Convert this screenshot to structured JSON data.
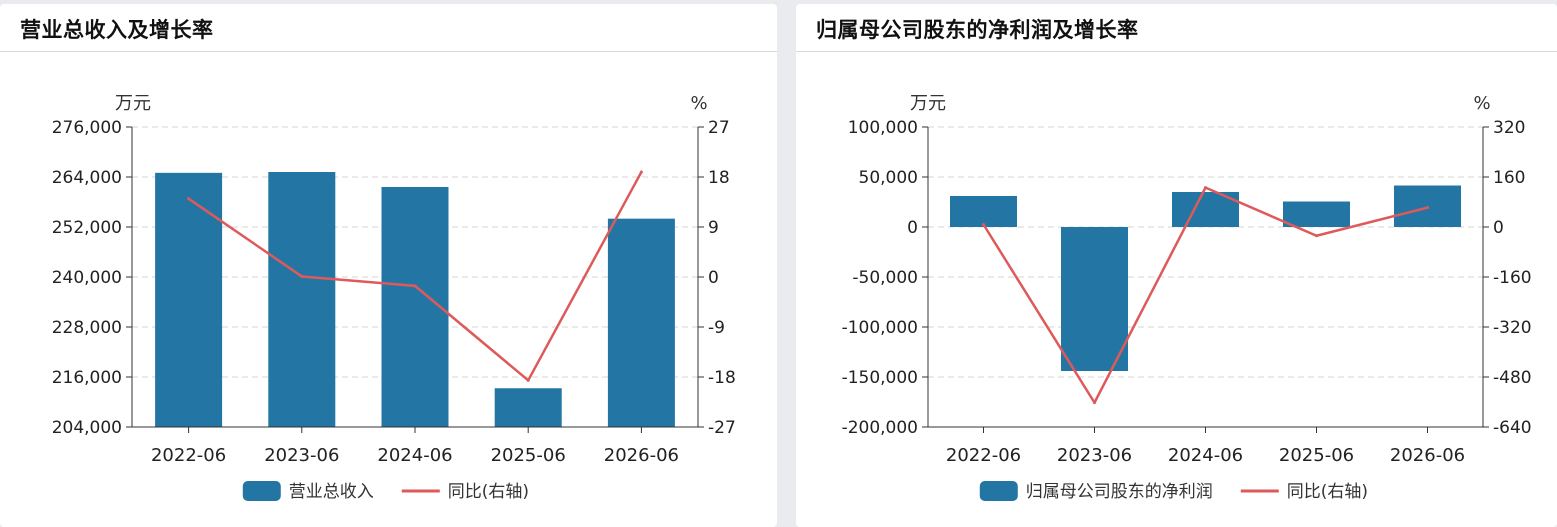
{
  "chart_data": [
    {
      "type": "bar",
      "title": "营业总收入及增长率",
      "y_unit": "万元",
      "y2_unit": "%",
      "categories": [
        "2022-06",
        "2023-06",
        "2024-06",
        "2025-06",
        "2026-06"
      ],
      "ylim": [
        204000,
        276000
      ],
      "y_ticks": [
        "276,000",
        "264,000",
        "252,000",
        "240,000",
        "228,000",
        "216,000",
        "204,000"
      ],
      "y2lim": [
        -27,
        27
      ],
      "y2_ticks": [
        "27",
        "18",
        "9",
        "0",
        "-9",
        "-18",
        "-27"
      ],
      "series": [
        {
          "name": "营业总收入",
          "type": "bar",
          "axis": "left",
          "values": [
            265000,
            265200,
            261600,
            213300,
            254000
          ]
        },
        {
          "name": "同比(右轴)",
          "type": "line",
          "axis": "right",
          "values": [
            14.1,
            0.1,
            -1.6,
            -18.6,
            18.9
          ]
        }
      ],
      "grid": "dashed",
      "legend": "bottom-center",
      "colors": {
        "bar": "#2376a4",
        "line": "#de5a5a"
      }
    },
    {
      "type": "bar",
      "title": "归属母公司股东的净利润及增长率",
      "y_unit": "万元",
      "y2_unit": "%",
      "categories": [
        "2022-06",
        "2023-06",
        "2024-06",
        "2025-06",
        "2026-06"
      ],
      "ylim": [
        -200000,
        100000
      ],
      "y_ticks": [
        "100,000",
        "50,000",
        "0",
        "-50,000",
        "-100,000",
        "-150,000",
        "-200,000"
      ],
      "y2lim": [
        -640,
        320
      ],
      "y2_ticks": [
        "320",
        "160",
        "0",
        "-160",
        "-320",
        "-480",
        "-640"
      ],
      "series": [
        {
          "name": "归属母公司股东的净利润",
          "type": "bar",
          "axis": "left",
          "values": [
            31000,
            -144000,
            35000,
            25500,
            41500
          ]
        },
        {
          "name": "同比(右轴)",
          "type": "line",
          "axis": "right",
          "values": [
            8,
            -562,
            126,
            -28,
            62
          ]
        }
      ],
      "grid": "dashed",
      "legend": "bottom-center",
      "colors": {
        "bar": "#2376a4",
        "line": "#de5a5a"
      }
    }
  ]
}
